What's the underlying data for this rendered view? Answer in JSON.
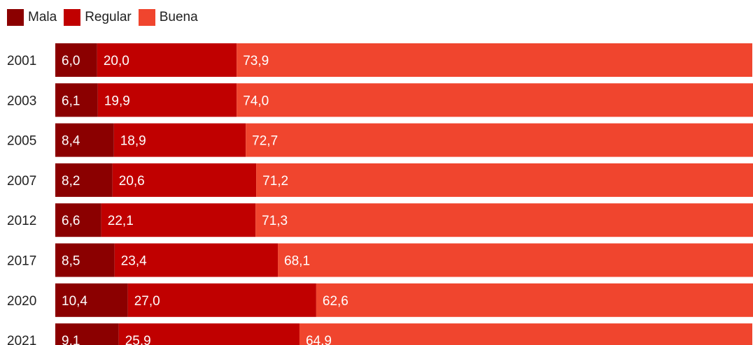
{
  "chart_data": {
    "type": "bar",
    "orientation": "horizontal",
    "stacked": true,
    "categories": [
      "2001",
      "2003",
      "2005",
      "2007",
      "2012",
      "2017",
      "2020",
      "2021"
    ],
    "series": [
      {
        "name": "Mala",
        "color": "#8b0000",
        "values": [
          6.0,
          6.1,
          8.4,
          8.2,
          6.6,
          8.5,
          10.4,
          9.1
        ],
        "labels": [
          "6,0",
          "6,1",
          "8,4",
          "8,2",
          "6,6",
          "8,5",
          "10,4",
          "9,1"
        ]
      },
      {
        "name": "Regular",
        "color": "#c00000",
        "values": [
          20.0,
          19.9,
          18.9,
          20.6,
          22.1,
          23.4,
          27.0,
          25.9
        ],
        "labels": [
          "20,0",
          "19,9",
          "18,9",
          "20,6",
          "22,1",
          "23,4",
          "27,0",
          "25,9"
        ]
      },
      {
        "name": "Buena",
        "color": "#f0452e",
        "values": [
          73.9,
          74.0,
          72.7,
          71.2,
          71.3,
          68.1,
          62.6,
          64.9
        ],
        "labels": [
          "73,9",
          "74,0",
          "72,7",
          "71,2",
          "71,3",
          "68,1",
          "62,6",
          "64,9"
        ]
      }
    ],
    "xlim": [
      0,
      100
    ],
    "legend": "top-left",
    "grid": false
  }
}
